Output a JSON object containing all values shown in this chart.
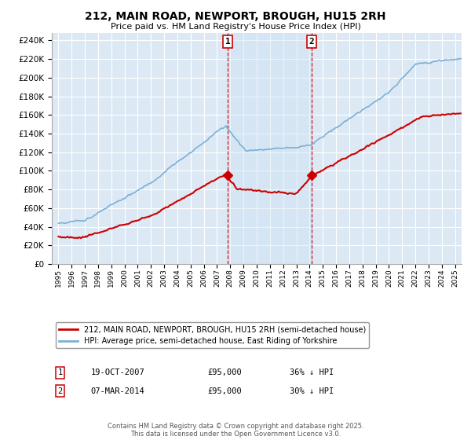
{
  "title1": "212, MAIN ROAD, NEWPORT, BROUGH, HU15 2RH",
  "title2": "Price paid vs. HM Land Registry's House Price Index (HPI)",
  "background_color": "#ffffff",
  "plot_bg_color": "#dce9f5",
  "shade_color": "#c8dff0",
  "grid_color": "#ffffff",
  "red_line_color": "#cc0000",
  "blue_line_color": "#7ab0d4",
  "sale1_date_num": 2007.8,
  "sale1_price": 95000,
  "sale1_label": "1",
  "sale1_date_str": "19-OCT-2007",
  "sale1_pct": "36% ↓ HPI",
  "sale2_date_num": 2014.17,
  "sale2_price": 95000,
  "sale2_label": "2",
  "sale2_date_str": "07-MAR-2014",
  "sale2_pct": "30% ↓ HPI",
  "ylim": [
    0,
    248000
  ],
  "xlim": [
    1994.5,
    2025.5
  ],
  "yticks": [
    0,
    20000,
    40000,
    60000,
    80000,
    100000,
    120000,
    140000,
    160000,
    180000,
    200000,
    220000,
    240000
  ],
  "legend_line1": "212, MAIN ROAD, NEWPORT, BROUGH, HU15 2RH (semi-detached house)",
  "legend_line2": "HPI: Average price, semi-detached house, East Riding of Yorkshire",
  "footnote": "Contains HM Land Registry data © Crown copyright and database right 2025.\nThis data is licensed under the Open Government Licence v3.0."
}
